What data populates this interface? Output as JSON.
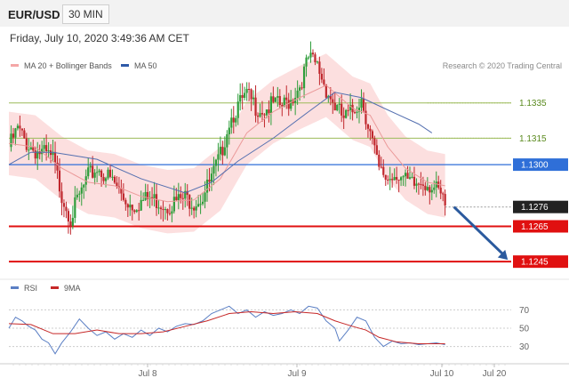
{
  "header": {
    "symbol": "EUR/USD",
    "timeframe": "30 MIN"
  },
  "datetime": "Friday, July 10, 2020 3:49:36 AM CET",
  "legend_main": [
    {
      "label": "MA 20 + Bollinger Bands",
      "color": "#f4a6a6"
    },
    {
      "label": "MA 50",
      "color": "#2f5aa8"
    }
  ],
  "credit": "Research © 2020 Trading Central",
  "legend_rsi": [
    {
      "label": "RSI",
      "color": "#5b7fc4"
    },
    {
      "label": "9MA",
      "color": "#c62828"
    }
  ],
  "colors": {
    "resistance_line": "#9bbb59",
    "resistance_text": "#5a8a1e",
    "pivot_line": "#2f6fd8",
    "pivot_badge": "#2f6fd8",
    "support_line": "#e01010",
    "support_badge": "#e01010",
    "last_badge": "#222222",
    "up_candle": "#2e9d3a",
    "down_candle": "#c0272d",
    "band_fill": "#fbd9d9",
    "ma20": "#eb9a9a",
    "ma50": "#5570b0",
    "arrow": "#2b5a9e"
  },
  "chart_data": [
    {
      "type": "candlestick",
      "title": "EUR/USD",
      "timeframe": "30 MIN",
      "x_tick_labels": [
        "Jul 8",
        "Jul 9",
        "Jul 10",
        "Jul 20"
      ],
      "ylim": [
        1.1236,
        1.1352
      ],
      "levels": [
        {
          "value": 1.1335,
          "label": "1.1335",
          "kind": "resistance"
        },
        {
          "value": 1.1315,
          "label": "1.1315",
          "kind": "resistance"
        },
        {
          "value": 1.13,
          "label": "1.1300",
          "kind": "pivot"
        },
        {
          "value": 1.1276,
          "label": "1.1276",
          "kind": "last"
        },
        {
          "value": 1.1265,
          "label": "1.1265",
          "kind": "support"
        },
        {
          "value": 1.1245,
          "label": "1.1245",
          "kind": "support"
        }
      ],
      "close_path": [
        [
          0,
          1.131
        ],
        [
          4,
          1.132
        ],
        [
          8,
          1.1312
        ],
        [
          12,
          1.1308
        ],
        [
          16,
          1.1306
        ],
        [
          20,
          1.1303
        ],
        [
          24,
          1.1283
        ],
        [
          28,
          1.127
        ],
        [
          32,
          1.1282
        ],
        [
          36,
          1.1293
        ],
        [
          40,
          1.1298
        ],
        [
          44,
          1.1294
        ],
        [
          48,
          1.1289
        ],
        [
          52,
          1.1281
        ],
        [
          56,
          1.1277
        ],
        [
          60,
          1.1279
        ],
        [
          64,
          1.1281
        ],
        [
          68,
          1.1279
        ],
        [
          72,
          1.1277
        ],
        [
          76,
          1.1279
        ],
        [
          80,
          1.1281
        ],
        [
          84,
          1.1279
        ],
        [
          88,
          1.1282
        ],
        [
          92,
          1.1292
        ],
        [
          96,
          1.1305
        ],
        [
          100,
          1.1325
        ],
        [
          104,
          1.1333
        ],
        [
          108,
          1.1339
        ],
        [
          112,
          1.1333
        ],
        [
          116,
          1.1331
        ],
        [
          120,
          1.1334
        ],
        [
          124,
          1.1333
        ],
        [
          128,
          1.1337
        ],
        [
          132,
          1.1345
        ],
        [
          136,
          1.136
        ],
        [
          140,
          1.1356
        ],
        [
          144,
          1.1343
        ],
        [
          148,
          1.1333
        ],
        [
          152,
          1.1326
        ],
        [
          156,
          1.133
        ],
        [
          160,
          1.1338
        ],
        [
          164,
          1.1318
        ],
        [
          168,
          1.1296
        ],
        [
          172,
          1.1292
        ],
        [
          176,
          1.1296
        ],
        [
          180,
          1.129
        ],
        [
          184,
          1.1288
        ],
        [
          188,
          1.1291
        ],
        [
          192,
          1.1288
        ],
        [
          196,
          1.1282
        ],
        [
          198,
          1.1276
        ]
      ],
      "ma20_path": [
        [
          0,
          1.1312
        ],
        [
          12,
          1.131
        ],
        [
          24,
          1.1298
        ],
        [
          36,
          1.129
        ],
        [
          48,
          1.1288
        ],
        [
          60,
          1.1282
        ],
        [
          72,
          1.1279
        ],
        [
          84,
          1.128
        ],
        [
          96,
          1.1292
        ],
        [
          108,
          1.1318
        ],
        [
          120,
          1.133
        ],
        [
          132,
          1.1338
        ],
        [
          144,
          1.1345
        ],
        [
          156,
          1.1332
        ],
        [
          164,
          1.1328
        ],
        [
          172,
          1.131
        ],
        [
          180,
          1.1298
        ],
        [
          190,
          1.129
        ],
        [
          198,
          1.1288
        ]
      ],
      "band_width": 0.0018,
      "ma50_path": [
        [
          0,
          1.13
        ],
        [
          10,
          1.1307
        ],
        [
          20,
          1.1307
        ],
        [
          40,
          1.1303
        ],
        [
          60,
          1.1292
        ],
        [
          80,
          1.1284
        ],
        [
          92,
          1.129
        ],
        [
          104,
          1.1302
        ],
        [
          120,
          1.1315
        ],
        [
          136,
          1.133
        ],
        [
          148,
          1.1341
        ],
        [
          160,
          1.1338
        ],
        [
          172,
          1.1331
        ],
        [
          186,
          1.1323
        ],
        [
          192,
          1.1318
        ]
      ],
      "forecast_arrow": {
        "from": [
          198,
          1.1276
        ],
        "to": [
          220,
          1.1246
        ]
      }
    },
    {
      "type": "line",
      "title": "RSI",
      "series": [
        {
          "name": "RSI",
          "values": [
            [
              0,
              50
            ],
            [
              3,
              62
            ],
            [
              6,
              58
            ],
            [
              9,
              52
            ],
            [
              12,
              48
            ],
            [
              15,
              38
            ],
            [
              18,
              34
            ],
            [
              21,
              22
            ],
            [
              24,
              34
            ],
            [
              28,
              46
            ],
            [
              32,
              60
            ],
            [
              36,
              50
            ],
            [
              40,
              42
            ],
            [
              44,
              46
            ],
            [
              48,
              38
            ],
            [
              52,
              44
            ],
            [
              56,
              40
            ],
            [
              60,
              48
            ],
            [
              64,
              42
            ],
            [
              68,
              50
            ],
            [
              72,
              46
            ],
            [
              76,
              52
            ],
            [
              80,
              55
            ],
            [
              84,
              54
            ],
            [
              88,
              58
            ],
            [
              92,
              66
            ],
            [
              96,
              70
            ],
            [
              100,
              74
            ],
            [
              104,
              66
            ],
            [
              108,
              70
            ],
            [
              112,
              62
            ],
            [
              116,
              68
            ],
            [
              120,
              64
            ],
            [
              124,
              66
            ],
            [
              128,
              70
            ],
            [
              132,
              66
            ],
            [
              136,
              74
            ],
            [
              140,
              72
            ],
            [
              144,
              58
            ],
            [
              148,
              50
            ],
            [
              150,
              36
            ],
            [
              154,
              48
            ],
            [
              158,
              62
            ],
            [
              162,
              58
            ],
            [
              166,
              40
            ],
            [
              170,
              30
            ],
            [
              174,
              36
            ],
            [
              178,
              33
            ],
            [
              182,
              34
            ],
            [
              186,
              32
            ],
            [
              190,
              33
            ],
            [
              194,
              34
            ],
            [
              198,
              32
            ]
          ]
        },
        {
          "name": "9MA",
          "values": [
            [
              0,
              55
            ],
            [
              10,
              54
            ],
            [
              20,
              44
            ],
            [
              30,
              44
            ],
            [
              40,
              48
            ],
            [
              50,
              44
            ],
            [
              60,
              44
            ],
            [
              70,
              46
            ],
            [
              80,
              52
            ],
            [
              90,
              58
            ],
            [
              100,
              66
            ],
            [
              110,
              68
            ],
            [
              120,
              66
            ],
            [
              130,
              68
            ],
            [
              140,
              66
            ],
            [
              148,
              58
            ],
            [
              156,
              52
            ],
            [
              162,
              48
            ],
            [
              168,
              40
            ],
            [
              176,
              35
            ],
            [
              186,
              33
            ],
            [
              198,
              33
            ]
          ]
        }
      ],
      "y_tick_labels": [
        "70",
        "50",
        "30"
      ],
      "y_ticks": [
        70,
        50,
        30
      ],
      "ylim": [
        15,
        85
      ]
    }
  ]
}
